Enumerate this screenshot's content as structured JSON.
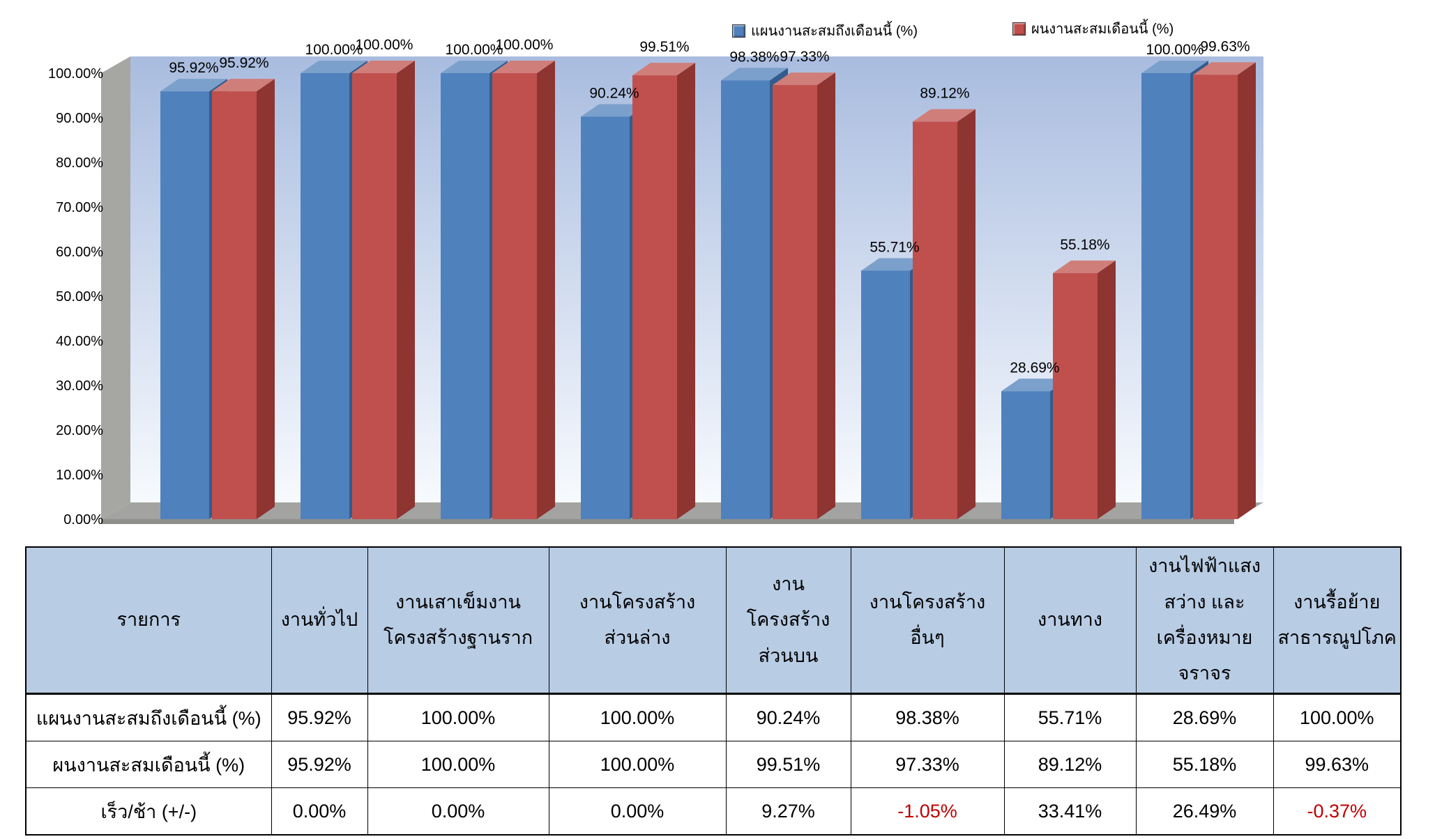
{
  "colors": {
    "blue_front": "#4F81BD",
    "blue_top": "#7ba0cb",
    "blue_side": "#315c8d",
    "red_front": "#C0504D",
    "red_top": "#cf7e7a",
    "red_side": "#8e3431",
    "wall_top": "#a9bcdf",
    "wall_bottom": "#f7fafe",
    "gray_wall": "#a6a6a3",
    "gray_floor": "#a3a3a1",
    "gray_floor_edge": "#8f8f8c",
    "header_bg": "#b8cce4",
    "negative_text": "#c00000"
  },
  "legend": {
    "items": [
      {
        "label": "แผนงานสะสมถึงเดือนนี้ (%)",
        "color": "#4F81BD"
      },
      {
        "label": "ผนงานสะสมเดือนนี้ (%)",
        "color": "#C0504D"
      }
    ]
  },
  "chart_data": {
    "type": "bar",
    "title": "",
    "categories": [
      "งานทั่วไป",
      "งานเสาเข็มงานโครงสร้างฐานราก",
      "งานโครงสร้างส่วนล่าง",
      "งานโครงสร้างส่วนบน",
      "งานโครงสร้างอื่นๆ",
      "งานทาง",
      "งานไฟฟ้าแสงสว่าง และเครื่องหมายจราจร",
      "งานรื้อย้ายสาธารณูปโภค"
    ],
    "series": [
      {
        "name": "แผนงานสะสมถึงเดือนนี้ (%)",
        "color": "#4F81BD",
        "values": [
          95.92,
          100.0,
          100.0,
          90.24,
          98.38,
          55.71,
          28.69,
          100.0
        ]
      },
      {
        "name": "ผนงานสะสมเดือนนี้ (%)",
        "color": "#C0504D",
        "values": [
          95.92,
          100.0,
          100.0,
          99.51,
          97.33,
          89.12,
          55.18,
          99.63
        ]
      }
    ],
    "y_ticks": [
      "0.00%",
      "10.00%",
      "20.00%",
      "30.00%",
      "40.00%",
      "50.00%",
      "60.00%",
      "70.00%",
      "80.00%",
      "90.00%",
      "100.00%"
    ],
    "ylim": [
      0,
      100
    ],
    "grid": false,
    "legend_position": "top",
    "projection": "3d"
  },
  "table": {
    "header": [
      "รายการ",
      "งานทั่วไป",
      "งานเสาเข็มงาน\nโครงสร้างฐานราก",
      "งานโครงสร้าง\nส่วนล่าง",
      "งานโครงสร้าง\nส่วนบน",
      "งานโครงสร้าง\nอื่นๆ",
      "งานทาง",
      "งานไฟฟ้าแสง\nสว่าง และ\nเครื่องหมาย\nจราจร",
      "งานรื้อย้าย\nสาธารณูปโภค"
    ],
    "rows": [
      {
        "label": "แผนงานสะสมถึงเดือนนี้ (%)",
        "values": [
          "95.92%",
          "100.00%",
          "100.00%",
          "90.24%",
          "98.38%",
          "55.71%",
          "28.69%",
          "100.00%"
        ]
      },
      {
        "label": "ผนงานสะสมเดือนนี้ (%)",
        "values": [
          "95.92%",
          "100.00%",
          "100.00%",
          "99.51%",
          "97.33%",
          "89.12%",
          "55.18%",
          "99.63%"
        ]
      },
      {
        "label": "เร็ว/ช้า (+/-)",
        "values": [
          "0.00%",
          "0.00%",
          "0.00%",
          "9.27%",
          "-1.05%",
          "33.41%",
          "26.49%",
          "-0.37%"
        ]
      }
    ]
  }
}
